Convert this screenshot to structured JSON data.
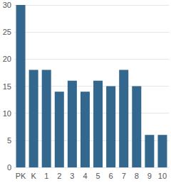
{
  "chart_data": {
    "type": "bar",
    "categories": [
      "PK",
      "K",
      "1",
      "2",
      "3",
      "4",
      "5",
      "6",
      "7",
      "8",
      "9",
      "10"
    ],
    "values": [
      30,
      18,
      18,
      14,
      16,
      14,
      16,
      15,
      18,
      15,
      6,
      6
    ],
    "color": "#34678e",
    "ylim": [
      0,
      30
    ],
    "yticks": [
      0,
      5,
      10,
      15,
      20,
      25,
      30
    ],
    "grid": true
  }
}
